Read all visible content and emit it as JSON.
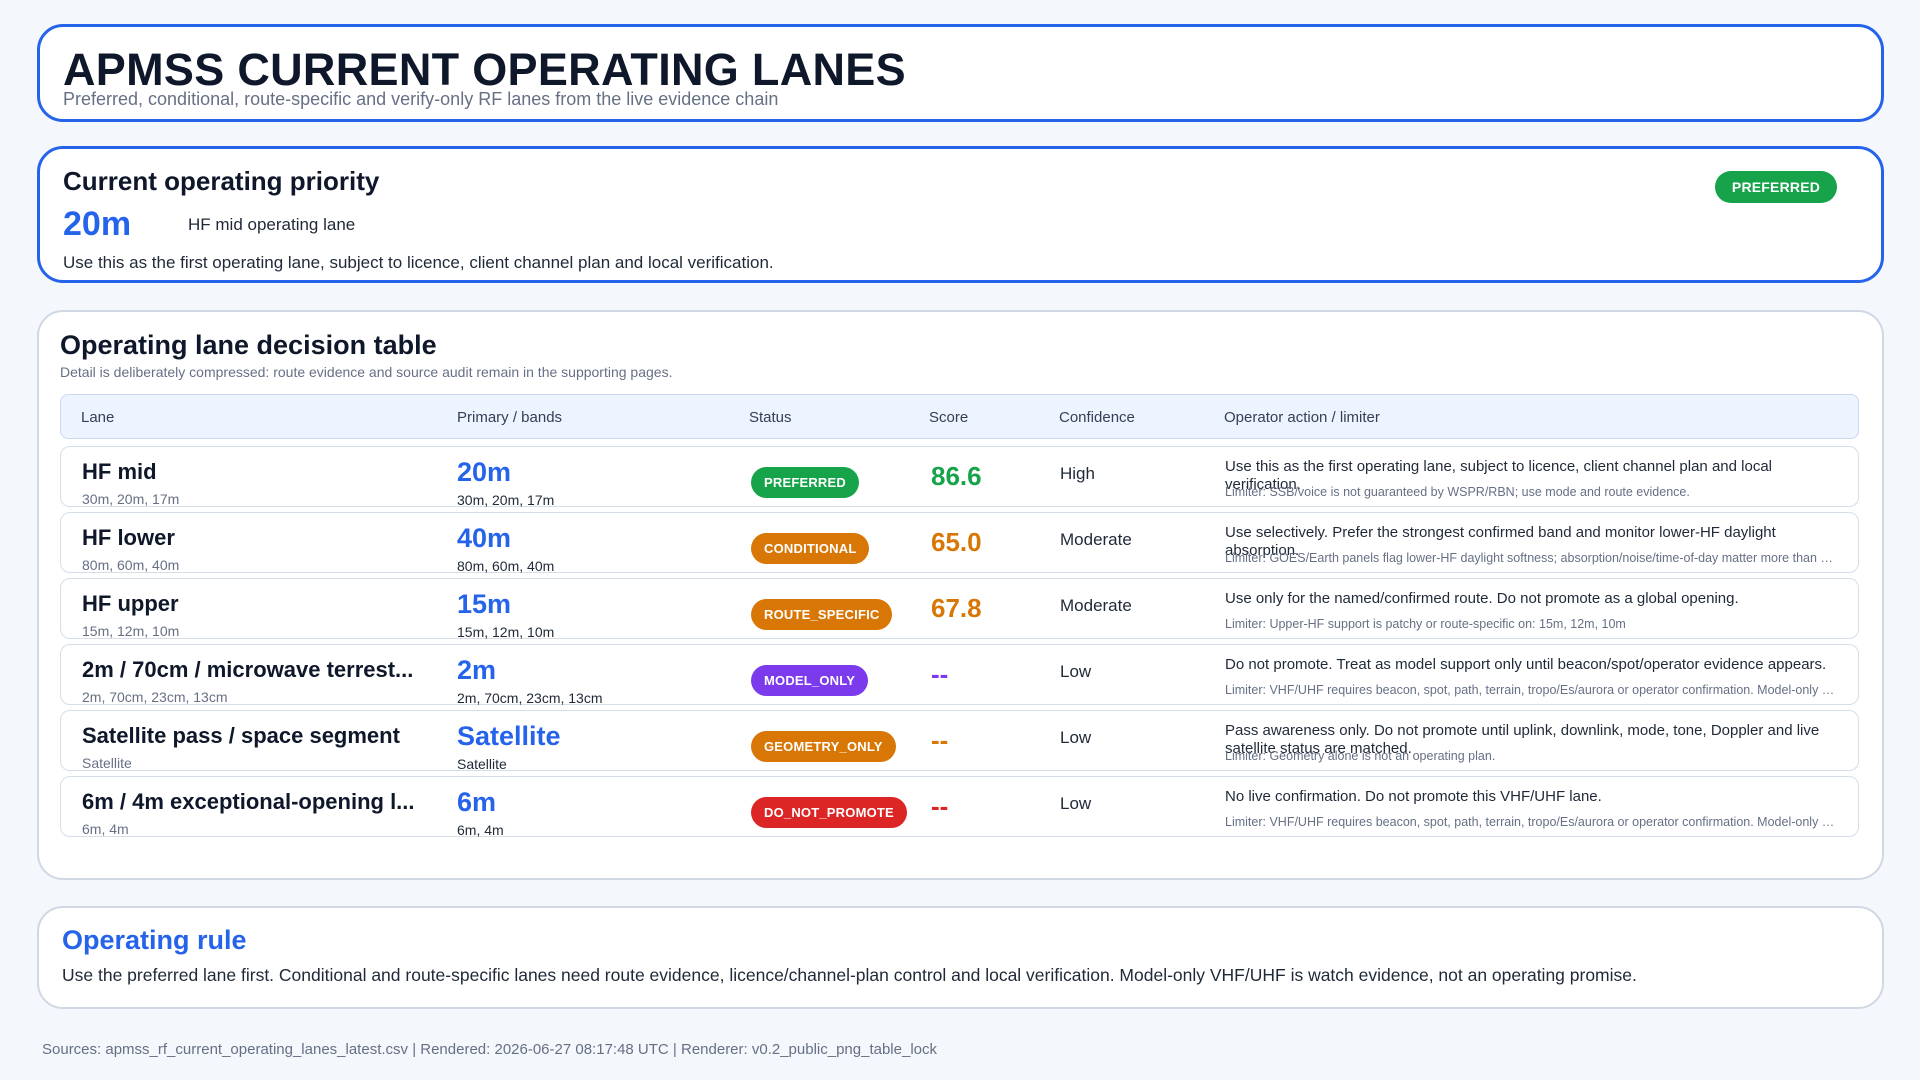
{
  "header": {
    "title": "APMSS CURRENT OPERATING LANES",
    "subtitle": "Preferred, conditional, route-specific and verify-only RF lanes from the live evidence chain"
  },
  "priority": {
    "heading": "Current operating priority",
    "band": "20m",
    "lane_name": "HF mid operating lane",
    "note": "Use this as the first operating lane, subject to licence, client channel plan and local verification.",
    "status": "PREFERRED",
    "status_color": "#16a34a"
  },
  "table": {
    "heading": "Operating lane decision table",
    "subheading": "Detail is deliberately compressed: route evidence and source audit remain in the supporting pages.",
    "columns": [
      "Lane",
      "Primary / bands",
      "Status",
      "Score",
      "Confidence",
      "Operator action / limiter"
    ],
    "rows": [
      {
        "lane": "HF mid",
        "lane_bands": "30m, 20m, 17m",
        "primary": "20m",
        "primary_bands": "30m, 20m, 17m",
        "status": "PREFERRED",
        "status_color": "#16a34a",
        "score": "86.6",
        "score_color": "#16a34a",
        "confidence": "High",
        "action": "Use this as the first operating lane, subject to licence, client channel plan and local verification.",
        "limiter": "Limiter: SSB/voice is not guaranteed by WSPR/RBN; use mode and route evidence."
      },
      {
        "lane": "HF lower",
        "lane_bands": "80m, 60m, 40m",
        "primary": "40m",
        "primary_bands": "80m, 60m, 40m",
        "status": "CONDITIONAL",
        "status_color": "#d97706",
        "score": "65.0",
        "score_color": "#d97706",
        "confidence": "Moderate",
        "action": "Use selectively. Prefer the strongest confirmed band and monitor lower-HF daylight absorption.",
        "limiter": "Limiter: GOES/Earth panels flag lower-HF daylight softness; absorption/noise/time-of-day matter more than band labels."
      },
      {
        "lane": "HF upper",
        "lane_bands": "15m, 12m, 10m",
        "primary": "15m",
        "primary_bands": "15m, 12m, 10m",
        "status": "ROUTE_SPECIFIC",
        "status_color": "#d97706",
        "score": "67.8",
        "score_color": "#d97706",
        "confidence": "Moderate",
        "action": "Use only for the named/confirmed route. Do not promote as a global opening.",
        "limiter": "Limiter: Upper-HF support is patchy or route-specific on: 15m, 12m, 10m"
      },
      {
        "lane": "2m / 70cm / microwave terrest...",
        "lane_bands": "2m, 70cm, 23cm, 13cm",
        "primary": "2m",
        "primary_bands": "2m, 70cm, 23cm, 13cm",
        "status": "MODEL_ONLY",
        "status_color": "#7c3aed",
        "score": "--",
        "score_color": "#7c3aed",
        "confidence": "Low",
        "action": "Do not promote. Treat as model support only until beacon/spot/operator evidence appears.",
        "limiter": "Limiter: VHF/UHF requires beacon, spot, path, terrain, tropo/Es/aurora or operator confirmation. Model-only evidence is watch evidence."
      },
      {
        "lane": "Satellite pass / space segment",
        "lane_bands": "Satellite",
        "primary": "Satellite",
        "primary_bands": "Satellite",
        "status": "GEOMETRY_ONLY",
        "status_color": "#d97706",
        "score": "--",
        "score_color": "#d97706",
        "confidence": "Low",
        "action": "Pass awareness only. Do not promote until uplink, downlink, mode, tone, Doppler and live satellite status are matched.",
        "limiter": "Limiter: Geometry alone is not an operating plan."
      },
      {
        "lane": "6m / 4m exceptional-opening l...",
        "lane_bands": "6m, 4m",
        "primary": "6m",
        "primary_bands": "6m, 4m",
        "status": "DO_NOT_PROMOTE",
        "status_color": "#dc2626",
        "score": "--",
        "score_color": "#dc2626",
        "confidence": "Low",
        "action": "No live confirmation. Do not promote this VHF/UHF lane.",
        "limiter": "Limiter: VHF/UHF requires beacon, spot, path, terrain, tropo/Es/aurora or operator confirmation. Model-only evidence is watch evidence."
      }
    ]
  },
  "rule": {
    "heading": "Operating rule",
    "text": "Use the preferred lane first. Conditional and route-specific lanes need route evidence, licence/channel-plan control and local verification. Model-only VHF/UHF is watch evidence, not an operating promise."
  },
  "footer": {
    "text": "Sources: apmss_rf_current_operating_lanes_latest.csv | Rendered: 2026-06-27 08:17:48 UTC | Renderer: v0.2_public_png_table_lock"
  }
}
